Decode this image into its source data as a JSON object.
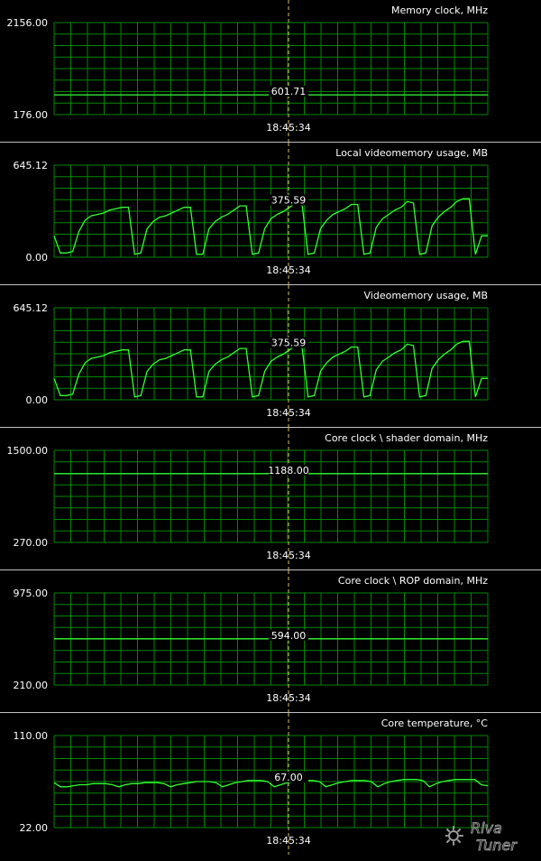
{
  "app": {
    "logo_text_top": "Riva",
    "logo_text_bottom": "Tuner",
    "colors": {
      "background": "#000000",
      "grid": "#008800",
      "trace": "#33ff33",
      "text": "#ffffff",
      "separator": "#c0c0c0",
      "cursor": "#d8c060"
    },
    "cursor_time": "18:45:34"
  },
  "chart_data": [
    {
      "type": "line",
      "title": "Memory clock, MHz",
      "ymax_label": "2156.00",
      "ymin_label": "176.00",
      "ylim": [
        176,
        2156
      ],
      "current_label": "601.71",
      "time_label": "18:45:34",
      "series": [
        {
          "values": [
            601.71,
            601.71
          ]
        }
      ]
    },
    {
      "type": "line",
      "title": "Local videomemory usage, MB",
      "ymax_label": "645.12",
      "ymin_label": "0.00",
      "ylim": [
        0,
        645.12
      ],
      "current_label": "375.59",
      "time_label": "18:45:34",
      "series": [
        {
          "values": [
            150,
            30,
            30,
            40,
            180,
            260,
            290,
            300,
            310,
            330,
            340,
            350,
            350,
            20,
            30,
            200,
            250,
            280,
            290,
            310,
            330,
            350,
            350,
            20,
            20,
            200,
            250,
            280,
            300,
            330,
            360,
            360,
            20,
            30,
            200,
            270,
            300,
            320,
            350,
            380,
            375,
            20,
            30,
            200,
            260,
            300,
            320,
            340,
            370,
            370,
            20,
            30,
            210,
            270,
            300,
            330,
            350,
            390,
            380,
            20,
            30,
            220,
            280,
            320,
            350,
            390,
            410,
            410,
            20,
            150,
            150
          ]
        }
      ]
    },
    {
      "type": "line",
      "title": "Videomemory usage, MB",
      "ymax_label": "645.12",
      "ymin_label": "0.00",
      "ylim": [
        0,
        645.12
      ],
      "current_label": "375.59",
      "time_label": "18:45:34",
      "series": [
        {
          "values": [
            150,
            30,
            30,
            40,
            180,
            260,
            290,
            300,
            310,
            330,
            340,
            350,
            350,
            20,
            30,
            200,
            250,
            280,
            290,
            310,
            330,
            350,
            350,
            20,
            20,
            200,
            250,
            280,
            300,
            330,
            360,
            360,
            20,
            30,
            200,
            270,
            300,
            320,
            350,
            380,
            375,
            20,
            30,
            200,
            260,
            300,
            320,
            340,
            370,
            370,
            20,
            30,
            210,
            270,
            300,
            330,
            350,
            390,
            380,
            20,
            30,
            220,
            280,
            320,
            350,
            390,
            410,
            410,
            20,
            150,
            150
          ]
        }
      ]
    },
    {
      "type": "line",
      "title": "Core clock \\ shader domain, MHz",
      "ymax_label": "1500.00",
      "ymin_label": "270.00",
      "ylim": [
        270,
        1500
      ],
      "current_label": "1188.00",
      "time_label": "18:45:34",
      "series": [
        {
          "values": [
            1188,
            1188
          ]
        }
      ]
    },
    {
      "type": "line",
      "title": "Core clock \\ ROP domain, MHz",
      "ymax_label": "975.00",
      "ymin_label": "210.00",
      "ylim": [
        210,
        975
      ],
      "current_label": "594.00",
      "time_label": "18:45:34",
      "series": [
        {
          "values": [
            594,
            594
          ]
        }
      ]
    },
    {
      "type": "line",
      "title": "Core temperature, °C",
      "ymax_label": "110.00",
      "ymin_label": "22.00",
      "ylim": [
        22,
        110
      ],
      "current_label": "67.00",
      "time_label": "18:45:34",
      "series": [
        {
          "values": [
            65,
            61,
            61,
            62,
            63,
            63,
            64,
            64,
            64,
            63,
            61,
            63,
            64,
            64,
            65,
            65,
            65,
            64,
            61,
            63,
            64,
            65,
            66,
            66,
            66,
            65,
            61,
            63,
            65,
            66,
            67,
            67,
            67,
            66,
            61,
            63,
            65,
            66,
            67,
            67,
            67,
            66,
            61,
            63,
            65,
            66,
            67,
            67,
            67,
            66,
            61,
            64,
            66,
            67,
            68,
            68,
            68,
            67,
            61,
            64,
            66,
            67,
            68,
            68,
            68,
            68,
            63,
            62
          ]
        }
      ]
    }
  ]
}
